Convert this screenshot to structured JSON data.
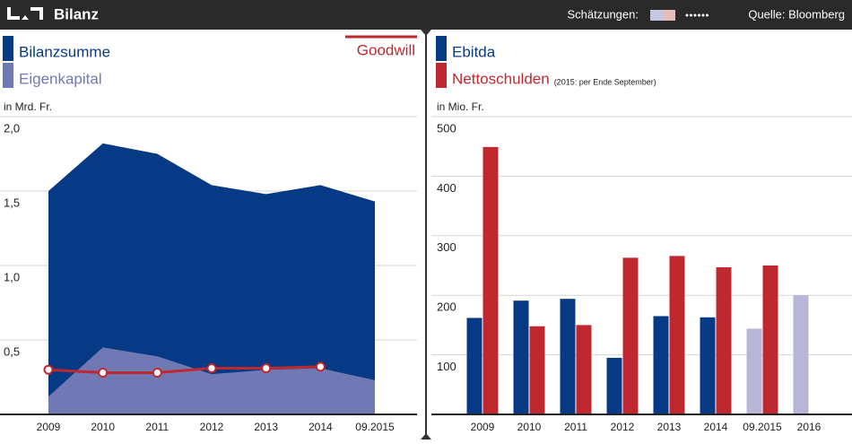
{
  "header": {
    "title": "Bilanz",
    "estimates_label": "Schätzungen:",
    "estimate_colors": [
      "#c6c7e3",
      "#e6bcbc"
    ],
    "source": "Quelle: Bloomberg"
  },
  "chart_data": [
    {
      "type": "area",
      "axis_label": "in Mrd. Fr.",
      "categories": [
        "2009",
        "2010",
        "2011",
        "2012",
        "2013",
        "2014",
        "09.2015"
      ],
      "ylim": [
        0,
        2
      ],
      "yticks": [
        {
          "value": 0.5,
          "label": "0,5"
        },
        {
          "value": 1,
          "label": "1,0"
        },
        {
          "value": 1.5,
          "label": "1,5"
        },
        {
          "value": 2,
          "label": "2,0"
        }
      ],
      "grid": true,
      "series": [
        {
          "name": "Bilanzsumme",
          "color": "#063a84",
          "values": [
            1.5,
            1.82,
            1.75,
            1.54,
            1.48,
            1.54,
            1.43
          ]
        },
        {
          "name": "Eigenkapital",
          "color": "#7079b3",
          "values": [
            0.12,
            0.45,
            0.39,
            0.27,
            0.3,
            0.31,
            0.23
          ]
        },
        {
          "name": "Goodwill",
          "type": "line",
          "color": "#c0282f",
          "values": [
            0.3,
            0.28,
            0.28,
            0.31,
            0.31,
            0.32,
            null
          ]
        }
      ]
    },
    {
      "type": "bar",
      "axis_label": "in Mio. Fr.",
      "note": "(2015: per Ende September)",
      "categories": [
        "2009",
        "2010",
        "2011",
        "2012",
        "2013",
        "2014",
        "09.2015",
        "2016"
      ],
      "ylim": [
        0,
        500
      ],
      "yticks": [
        100,
        200,
        300,
        400,
        500
      ],
      "grid": true,
      "series": [
        {
          "name": "Ebitda",
          "color": "#063a84",
          "colors": [
            "#063a84",
            "#063a84",
            "#063a84",
            "#063a84",
            "#063a84",
            "#063a84",
            "#b7b6d6",
            "#b7b6d6"
          ],
          "values": [
            162,
            191,
            194,
            95,
            165,
            163,
            144,
            200
          ]
        },
        {
          "name": "Nettoschulden",
          "color": "#c0282f",
          "values": [
            449,
            148,
            150,
            263,
            266,
            247,
            250,
            null
          ]
        }
      ]
    }
  ]
}
